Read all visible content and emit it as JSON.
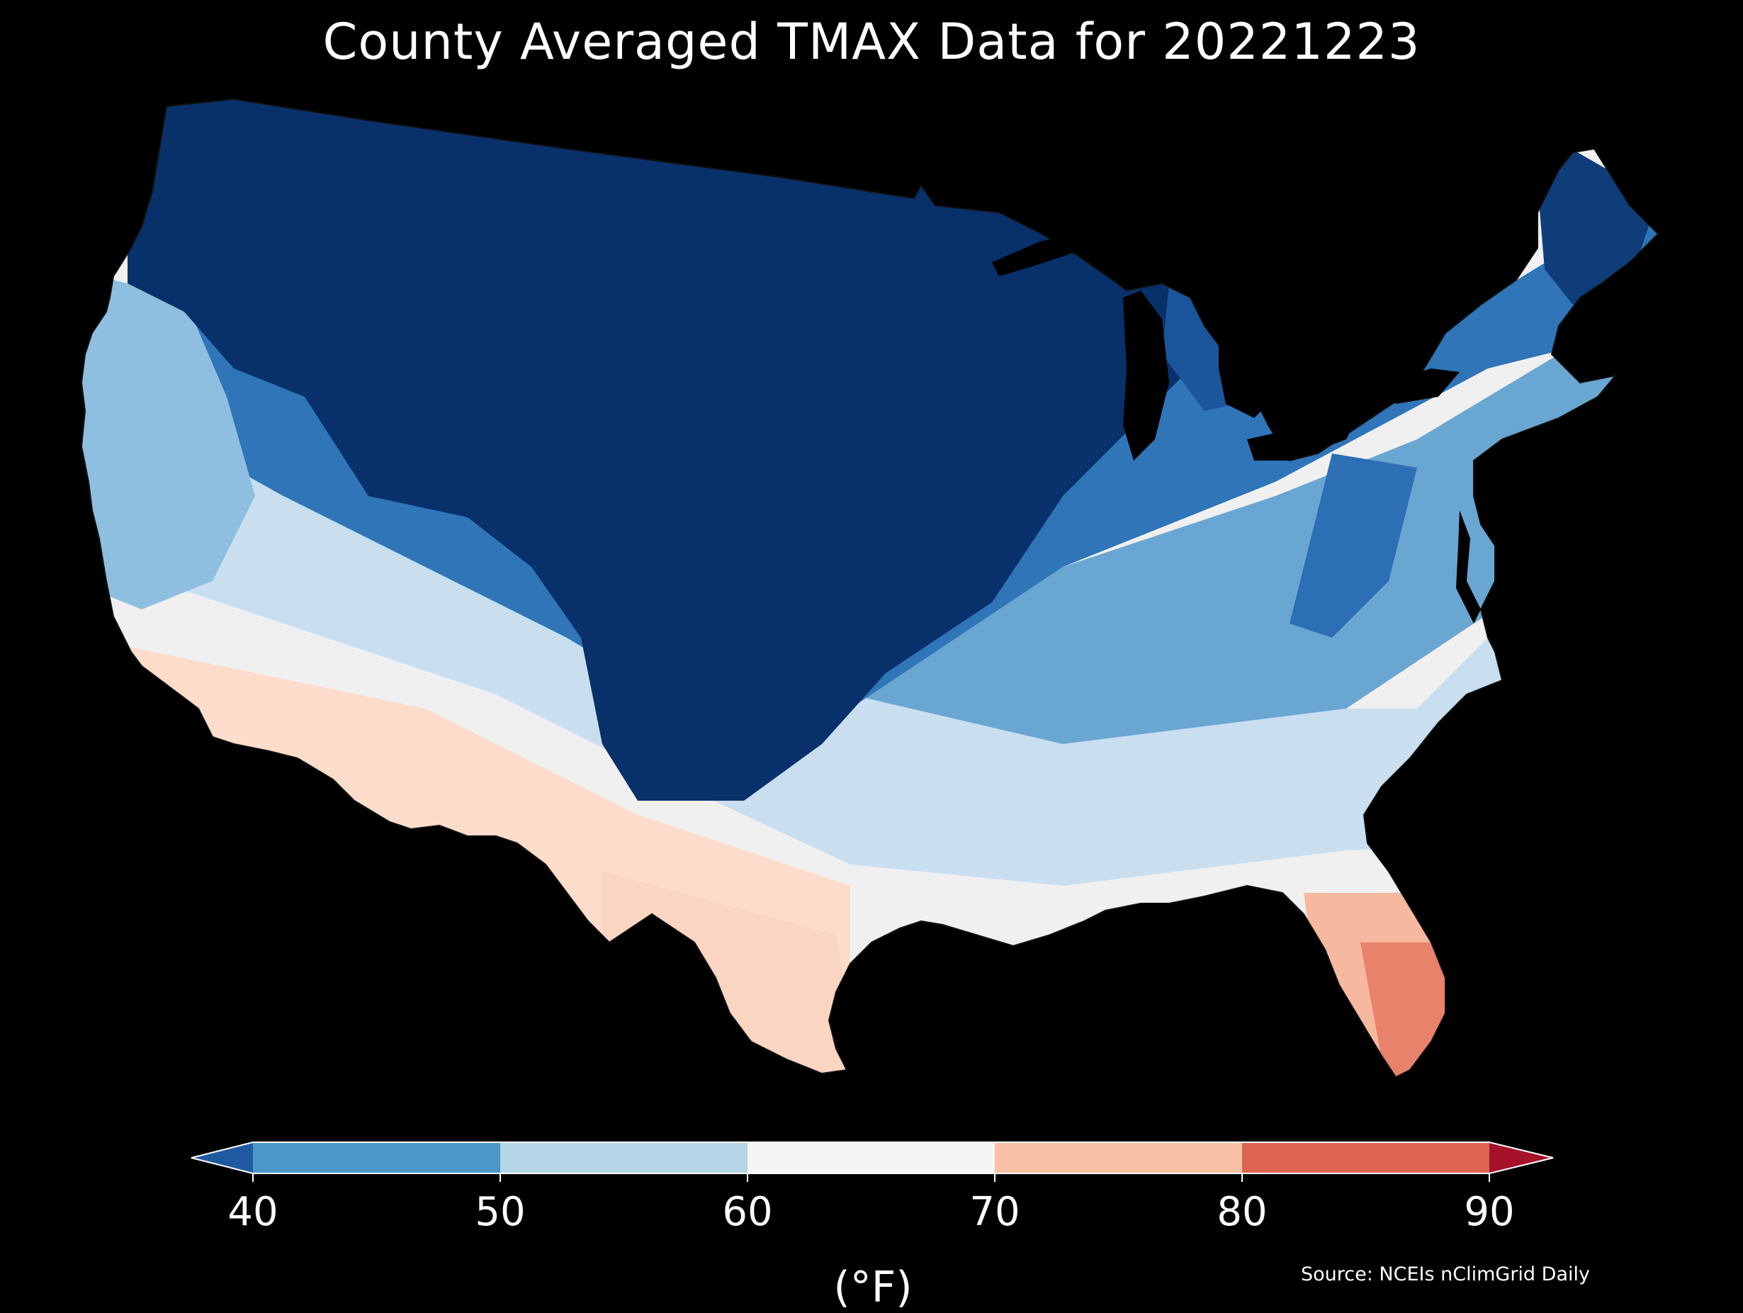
{
  "title": "County Averaged TMAX Data for 20221223",
  "units": "(°F)",
  "source": "Source: NCEIs nClimGrid Daily",
  "colorbar": {
    "ticks": [
      "40",
      "50",
      "60",
      "70",
      "80",
      "90"
    ],
    "bins": [
      {
        "range": "<40",
        "color": "#1f5aa0"
      },
      {
        "range": "40-50",
        "color": "#4b97c8"
      },
      {
        "range": "50-60",
        "color": "#b6d6e8"
      },
      {
        "range": "60-70",
        "color": "#f5f5f5"
      },
      {
        "range": "70-80",
        "color": "#f8c0a5"
      },
      {
        "range": "80-90",
        "color": "#de6552"
      },
      {
        "range": ">90",
        "color": "#a5122a"
      }
    ]
  },
  "map": {
    "region": "Contiguous United States counties",
    "colors": {
      "coldest": "#08306b",
      "cold": "#2166ac",
      "cool": "#4393c3",
      "mild": "#92c5de",
      "neutral": "#f0f0f0",
      "warm": "#fddbc7",
      "hot": "#e0735d"
    }
  }
}
